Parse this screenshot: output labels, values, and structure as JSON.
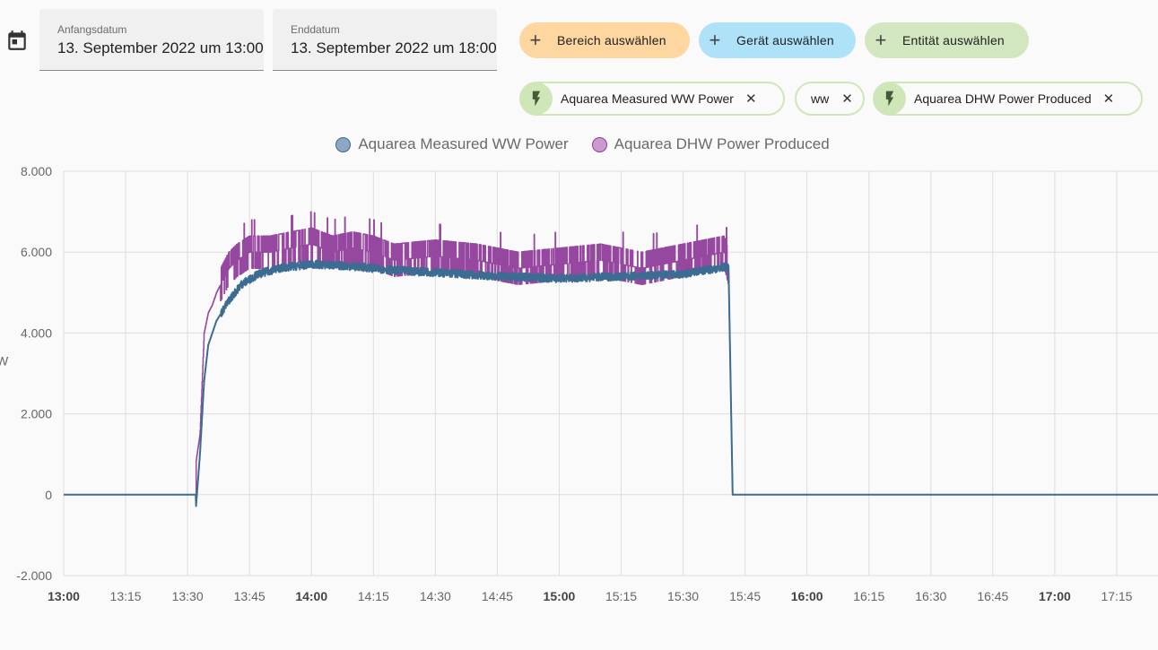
{
  "start_date": {
    "label": "Anfangsdatum",
    "value": "13. September 2022 um 13:00"
  },
  "end_date": {
    "label": "Enddatum",
    "value": "13. September 2022 um 18:00"
  },
  "target_buttons": [
    {
      "label": "Bereich auswählen",
      "color": "#fdd6a0"
    },
    {
      "label": "Gerät auswählen",
      "color": "#aee2f9"
    },
    {
      "label": "Entität auswählen",
      "color": "#d2e7bf"
    }
  ],
  "chips": [
    {
      "label": "Aquarea Measured WW Power",
      "icon": "flash-icon"
    },
    {
      "label": "ww",
      "icon": ""
    },
    {
      "label": "Aquarea DHW Power Produced",
      "icon": "flash-icon"
    }
  ],
  "legend": [
    {
      "label": "Aquarea Measured WW Power",
      "color": "#8fa6c4",
      "border": "#3f658c"
    },
    {
      "label": "Aquarea DHW Power Produced",
      "color": "#cb9ad0",
      "border": "#8e3f96"
    }
  ],
  "chart_data": {
    "type": "line",
    "ylabel": "W",
    "ylim": [
      -2000,
      8000
    ],
    "yticks": [
      "8.000",
      "6.000",
      "4.000",
      "2.000",
      "0",
      "-2.000"
    ],
    "xlim": [
      "13:00",
      "17:25"
    ],
    "xticks": [
      {
        "label": "13:00",
        "bold": true
      },
      {
        "label": "13:15",
        "bold": false
      },
      {
        "label": "13:30",
        "bold": false
      },
      {
        "label": "13:45",
        "bold": false
      },
      {
        "label": "14:00",
        "bold": true
      },
      {
        "label": "14:15",
        "bold": false
      },
      {
        "label": "14:30",
        "bold": false
      },
      {
        "label": "14:45",
        "bold": false
      },
      {
        "label": "15:00",
        "bold": true
      },
      {
        "label": "15:15",
        "bold": false
      },
      {
        "label": "15:30",
        "bold": false
      },
      {
        "label": "15:45",
        "bold": false
      },
      {
        "label": "16:00",
        "bold": true
      },
      {
        "label": "16:15",
        "bold": false
      },
      {
        "label": "16:30",
        "bold": false
      },
      {
        "label": "16:45",
        "bold": false
      },
      {
        "label": "17:00",
        "bold": true
      },
      {
        "label": "17:15",
        "bold": false
      }
    ],
    "grid": true,
    "legend_position": "top-center",
    "series": [
      {
        "name": "Aquarea DHW Power Produced",
        "color": "#96479f",
        "points": [
          [
            "13:00",
            0
          ],
          [
            "13:32",
            0
          ],
          [
            "13:32",
            800
          ],
          [
            "13:33",
            1500
          ],
          [
            "13:34",
            4000
          ],
          [
            "13:35",
            4500
          ],
          [
            "13:36",
            4700
          ],
          [
            "13:37",
            5000
          ],
          [
            "13:38",
            5200
          ],
          [
            "13:39",
            5400
          ],
          [
            "13:40",
            5600
          ],
          [
            "13:42",
            5800
          ],
          [
            "13:45",
            6000
          ],
          [
            "13:50",
            6000
          ],
          [
            "13:55",
            6100
          ],
          [
            "14:00",
            6200
          ],
          [
            "14:05",
            6000
          ],
          [
            "14:10",
            6100
          ],
          [
            "14:15",
            6000
          ],
          [
            "14:20",
            5800
          ],
          [
            "14:30",
            5900
          ],
          [
            "14:40",
            5800
          ],
          [
            "14:50",
            5600
          ],
          [
            "15:00",
            5700
          ],
          [
            "15:10",
            5800
          ],
          [
            "15:20",
            5600
          ],
          [
            "15:30",
            5800
          ],
          [
            "15:40",
            6000
          ],
          [
            "15:41",
            5600
          ],
          [
            "15:42",
            0
          ],
          [
            "17:25",
            0
          ]
        ]
      },
      {
        "name": "Aquarea Measured WW Power",
        "color": "#3d6c93",
        "points": [
          [
            "13:00",
            0
          ],
          [
            "13:32",
            0
          ],
          [
            "13:32",
            -350
          ],
          [
            "13:33",
            1000
          ],
          [
            "13:34",
            2800
          ],
          [
            "13:35",
            3700
          ],
          [
            "13:37",
            4300
          ],
          [
            "13:40",
            4800
          ],
          [
            "13:43",
            5200
          ],
          [
            "13:47",
            5450
          ],
          [
            "13:52",
            5600
          ],
          [
            "14:00",
            5700
          ],
          [
            "14:10",
            5650
          ],
          [
            "14:20",
            5550
          ],
          [
            "14:30",
            5500
          ],
          [
            "14:45",
            5400
          ],
          [
            "15:00",
            5350
          ],
          [
            "15:15",
            5400
          ],
          [
            "15:30",
            5450
          ],
          [
            "15:41",
            5650
          ],
          [
            "15:42",
            0
          ],
          [
            "17:25",
            0
          ]
        ]
      }
    ]
  }
}
